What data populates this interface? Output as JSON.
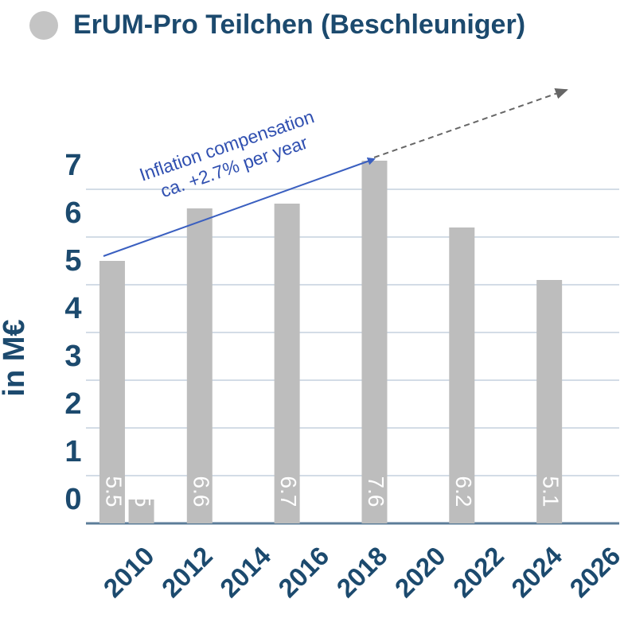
{
  "chart_data": {
    "type": "bar",
    "title": "ErUM-Pro Teilchen (Beschleuniger)",
    "y_label": "in M€",
    "annotation": [
      "Inflation compensation",
      "ca. +2.7% per year"
    ],
    "x": [
      2009,
      2010,
      2012,
      2015,
      2018,
      2021,
      2024
    ],
    "values": [
      5.5,
      0.5,
      6.6,
      6.7,
      7.6,
      6.2,
      5.1
    ],
    "color": "#bdbdbd",
    "xlim": [
      2008.1,
      2026.4
    ],
    "xticks": [
      2010,
      2012,
      2014,
      2016,
      2018,
      2020,
      2022,
      2024,
      2026
    ],
    "ylim": [
      0,
      7.6
    ],
    "yticks": [
      0,
      1,
      2,
      3,
      4,
      5,
      6,
      7
    ],
    "grid": true
  }
}
